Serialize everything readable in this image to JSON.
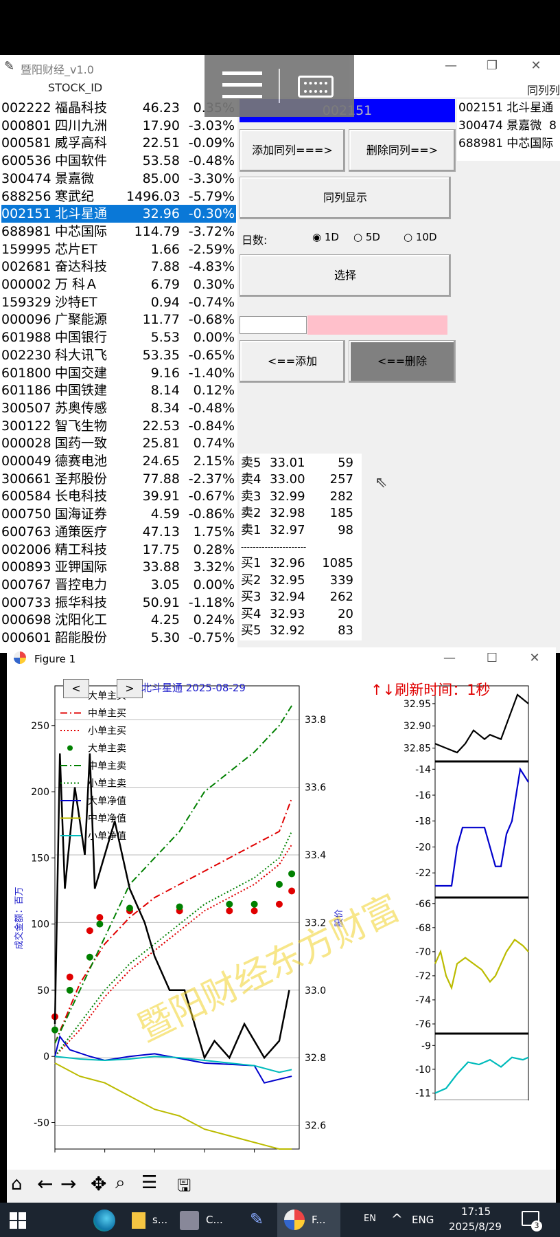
{
  "app": {
    "title": "暨阳财经_v1.0",
    "col_header_left": "STOCK_ID",
    "col_header_right": "同列列"
  },
  "stock_list": [
    {
      "code": "002222",
      "name": "福晶科技",
      "price": "46.23",
      "change": "0.35%"
    },
    {
      "code": "000801",
      "name": "四川九洲",
      "price": "17.90",
      "change": "-3.03%"
    },
    {
      "code": "000581",
      "name": "威孚高科",
      "price": "22.51",
      "change": "-0.09%"
    },
    {
      "code": "600536",
      "name": "中国软件",
      "price": "53.58",
      "change": "-0.48%"
    },
    {
      "code": "300474",
      "name": "景嘉微",
      "price": "85.00",
      "change": "-3.30%"
    },
    {
      "code": "688256",
      "name": "寒武纪",
      "price": "1496.03",
      "change": "-5.79%"
    },
    {
      "code": "002151",
      "name": "北斗星通",
      "price": "32.96",
      "change": "-0.30%",
      "selected": true
    },
    {
      "code": "688981",
      "name": "中芯国际",
      "price": "114.79",
      "change": "-3.72%"
    },
    {
      "code": "159995",
      "name": "芯片ET",
      "price": "1.66",
      "change": "-2.59%"
    },
    {
      "code": "002681",
      "name": "奋达科技",
      "price": "7.88",
      "change": "-4.83%"
    },
    {
      "code": "000002",
      "name": "万 科Ａ",
      "price": "6.79",
      "change": "0.30%"
    },
    {
      "code": "159329",
      "name": "沙特ET",
      "price": "0.94",
      "change": "-0.74%"
    },
    {
      "code": "000096",
      "name": "广聚能源",
      "price": "11.77",
      "change": "-0.68%"
    },
    {
      "code": "601988",
      "name": "中国银行",
      "price": "5.53",
      "change": "0.00%"
    },
    {
      "code": "002230",
      "name": "科大讯飞",
      "price": "53.35",
      "change": "-0.65%"
    },
    {
      "code": "601800",
      "name": "中国交建",
      "price": "9.16",
      "change": "-1.40%"
    },
    {
      "code": "601186",
      "name": "中国铁建",
      "price": "8.14",
      "change": "0.12%"
    },
    {
      "code": "300507",
      "name": "苏奥传感",
      "price": "8.34",
      "change": "-0.48%"
    },
    {
      "code": "300122",
      "name": "智飞生物",
      "price": "22.53",
      "change": "-0.84%"
    },
    {
      "code": "000028",
      "name": "国药一致",
      "price": "25.81",
      "change": "0.74%"
    },
    {
      "code": "000049",
      "name": "德赛电池",
      "price": "24.65",
      "change": "2.15%"
    },
    {
      "code": "300661",
      "name": "圣邦股份",
      "price": "77.88",
      "change": "-2.37%"
    },
    {
      "code": "600584",
      "name": "长电科技",
      "price": "39.91",
      "change": "-0.67%"
    },
    {
      "code": "000750",
      "name": "国海证券",
      "price": "4.59",
      "change": "-0.86%"
    },
    {
      "code": "600763",
      "name": "通策医疗",
      "price": "47.13",
      "change": "1.75%"
    },
    {
      "code": "002006",
      "name": "精工科技",
      "price": "17.75",
      "change": "0.28%"
    },
    {
      "code": "000893",
      "name": "亚钾国际",
      "price": "33.88",
      "change": "3.32%"
    },
    {
      "code": "000767",
      "name": "晋控电力",
      "price": "3.05",
      "change": "0.00%"
    },
    {
      "code": "000733",
      "name": "振华科技",
      "price": "50.91",
      "change": "-1.18%"
    },
    {
      "code": "000698",
      "name": "沈阳化工",
      "price": "4.25",
      "change": "0.24%"
    },
    {
      "code": "000601",
      "name": "韶能股份",
      "price": "5.30",
      "change": "-0.75%"
    }
  ],
  "controls": {
    "current_code": "002151",
    "add_same": "添加同列===>",
    "del_same": "删除同列==>",
    "show_same": "同列显示",
    "days_label": "日数:",
    "day_options": [
      "1D",
      "5D",
      "10D"
    ],
    "select": "选择",
    "add": "<==添加",
    "delete": "<==删除"
  },
  "same_list": [
    "002151 北斗星通",
    "300474 景嘉微  8",
    "688981 中芯国际"
  ],
  "depth": {
    "asks": [
      {
        "label": "卖5",
        "price": "33.01",
        "vol": "59"
      },
      {
        "label": "卖4",
        "price": "33.00",
        "vol": "257"
      },
      {
        "label": "卖3",
        "price": "32.99",
        "vol": "282"
      },
      {
        "label": "卖2",
        "price": "32.98",
        "vol": "185"
      },
      {
        "label": "卖1",
        "price": "32.97",
        "vol": "98"
      }
    ],
    "separator": "----------------------",
    "bids": [
      {
        "label": "买1",
        "price": "32.96",
        "vol": "1085"
      },
      {
        "label": "买2",
        "price": "32.95",
        "vol": "339"
      },
      {
        "label": "买3",
        "price": "32.94",
        "vol": "262"
      },
      {
        "label": "买4",
        "price": "32.93",
        "vol": "20"
      },
      {
        "label": "买5",
        "price": "32.92",
        "vol": "83"
      }
    ]
  },
  "figure": {
    "window_title": "Figure 1",
    "header": "北斗星通  2025-08-29",
    "refresh": "↑↓刷新时间：1秒",
    "watermark": "暨阳财经东方财富"
  },
  "chart_data": [
    {
      "type": "line",
      "xlim": [
        0,
        4900
      ],
      "ylim_left": [
        -70,
        280
      ],
      "ylim_right": [
        32.53,
        33.9
      ],
      "x_ticks": [
        0,
        1000,
        2000,
        3000,
        4000
      ],
      "y_ticks_left": [
        -50,
        0,
        50,
        100,
        150,
        200,
        250
      ],
      "y_ticks_right": [
        32.6,
        32.8,
        33.0,
        33.2,
        33.4,
        33.6,
        33.8
      ],
      "ylabel": "成交金额：百万",
      "ylabel_right": "股价",
      "grid": true,
      "legend": "top-left",
      "series": [
        {
          "name": "大单主买",
          "style": "dots",
          "color": "#e00000",
          "x": [
            0,
            300,
            700,
            900,
            1500,
            2500,
            3500,
            4000,
            4500,
            4750
          ],
          "y": [
            30,
            60,
            95,
            105,
            110,
            110,
            110,
            110,
            115,
            125
          ]
        },
        {
          "name": "中单主买",
          "style": "dashdot",
          "color": "#e00000",
          "x": [
            0,
            500,
            1000,
            1500,
            2000,
            2500,
            3000,
            3500,
            4000,
            4500,
            4750
          ],
          "y": [
            10,
            55,
            85,
            105,
            120,
            130,
            140,
            150,
            160,
            170,
            195
          ]
        },
        {
          "name": "小单主买",
          "style": "dotted",
          "color": "#e00000",
          "x": [
            0,
            500,
            1000,
            1500,
            2000,
            2500,
            3000,
            3500,
            4000,
            4500,
            4750
          ],
          "y": [
            0,
            20,
            45,
            65,
            80,
            95,
            110,
            120,
            130,
            145,
            160
          ]
        },
        {
          "name": "大单主卖",
          "style": "dots",
          "color": "#008000",
          "x": [
            0,
            300,
            700,
            900,
            1500,
            2500,
            3500,
            4000,
            4500,
            4750
          ],
          "y": [
            20,
            50,
            75,
            100,
            112,
            113,
            115,
            115,
            130,
            138
          ]
        },
        {
          "name": "中单主卖",
          "style": "dashdot",
          "color": "#008000",
          "x": [
            0,
            500,
            1000,
            1500,
            2000,
            2500,
            3000,
            3500,
            4000,
            4500,
            4750
          ],
          "y": [
            10,
            50,
            90,
            130,
            150,
            170,
            200,
            215,
            230,
            250,
            265
          ]
        },
        {
          "name": "小单主卖",
          "style": "dotted",
          "color": "#008000",
          "x": [
            0,
            500,
            1000,
            1500,
            2000,
            2500,
            3000,
            3500,
            4000,
            4500,
            4750
          ],
          "y": [
            0,
            25,
            50,
            70,
            85,
            100,
            115,
            125,
            135,
            150,
            170
          ]
        },
        {
          "name": "大单净值",
          "style": "solid",
          "color": "#0000cc",
          "x": [
            0,
            100,
            300,
            700,
            1000,
            1500,
            2000,
            3000,
            4000,
            4200,
            4750
          ],
          "y": [
            0,
            15,
            5,
            0,
            -3,
            0,
            2,
            -5,
            -7,
            -20,
            -15
          ]
        },
        {
          "name": "中单净值",
          "style": "solid",
          "color": "#bbbb00",
          "x": [
            0,
            500,
            1000,
            1500,
            2000,
            2500,
            3000,
            3500,
            4000,
            4500,
            4750
          ],
          "y": [
            -5,
            -15,
            -20,
            -30,
            -40,
            -45,
            -55,
            -60,
            -65,
            -70,
            -70
          ]
        },
        {
          "name": "小单净值",
          "style": "solid",
          "color": "#00bbbb",
          "x": [
            0,
            500,
            1000,
            1500,
            2000,
            2500,
            3000,
            3500,
            4000,
            4500,
            4750
          ],
          "y": [
            0,
            -2,
            -3,
            -2,
            0,
            -1,
            -3,
            -5,
            -7,
            -12,
            -10
          ]
        },
        {
          "name": "",
          "axis": "right",
          "style": "solid",
          "color": "#000000",
          "x": [
            0,
            100,
            200,
            400,
            600,
            700,
            800,
            1000,
            1200,
            1500,
            1800,
            2000,
            2300,
            2600,
            2800,
            3000,
            3200,
            3500,
            3800,
            4000,
            4200,
            4500,
            4700
          ],
          "y": [
            32.9,
            33.7,
            33.3,
            33.6,
            33.4,
            33.7,
            33.3,
            33.4,
            33.5,
            33.3,
            33.2,
            33.1,
            33.0,
            33.0,
            32.9,
            32.8,
            32.85,
            32.8,
            32.9,
            32.85,
            32.8,
            32.85,
            33.0
          ]
        }
      ]
    },
    {
      "type": "line",
      "xlim": [
        4420,
        4760
      ],
      "ylim": [
        32.82,
        32.99
      ],
      "y_ticks": [
        32.85,
        32.9,
        32.95
      ],
      "series": [
        {
          "name": "",
          "color": "#000000",
          "x": [
            4420,
            4460,
            4500,
            4530,
            4560,
            4600,
            4620,
            4660,
            4690,
            4720,
            4760
          ],
          "y": [
            32.86,
            32.85,
            32.84,
            32.86,
            32.89,
            32.87,
            32.88,
            32.87,
            32.92,
            32.97,
            32.95
          ]
        }
      ]
    },
    {
      "type": "line",
      "xlim": [
        4420,
        4760
      ],
      "ylim": [
        -23.9,
        -13.4
      ],
      "y_ticks": [
        -22,
        -20,
        -18,
        -16,
        -14
      ],
      "series": [
        {
          "name": "",
          "color": "#0000cc",
          "x": [
            4420,
            4480,
            4500,
            4520,
            4560,
            4600,
            4640,
            4660,
            4680,
            4700,
            4730,
            4760
          ],
          "y": [
            -23,
            -23,
            -20,
            -18.5,
            -18.5,
            -18.5,
            -21.5,
            -21.5,
            -19,
            -18,
            -14,
            -15
          ]
        }
      ]
    },
    {
      "type": "line",
      "xlim": [
        4420,
        4760
      ],
      "ylim": [
        -76.8,
        -65.5
      ],
      "y_ticks": [
        -76,
        -74,
        -72,
        -70,
        -68,
        -66
      ],
      "series": [
        {
          "name": "",
          "color": "#bbbb00",
          "x": [
            4420,
            4440,
            4460,
            4480,
            4500,
            4530,
            4560,
            4590,
            4620,
            4640,
            4680,
            4710,
            4740,
            4760
          ],
          "y": [
            -71,
            -70,
            -72,
            -73,
            -71,
            -70.5,
            -71,
            -71.5,
            -72.5,
            -72,
            -70,
            -69,
            -69.5,
            -70
          ]
        }
      ]
    },
    {
      "type": "line",
      "xlim": [
        4420,
        4760
      ],
      "ylim": [
        -11.3,
        -8.5
      ],
      "y_ticks": [
        -11,
        -10,
        -9
      ],
      "x_ticks": [
        4500,
        4600,
        4700
      ],
      "series": [
        {
          "name": "",
          "color": "#00bbbb",
          "x": [
            4420,
            4460,
            4500,
            4540,
            4580,
            4620,
            4660,
            4700,
            4740,
            4760
          ],
          "y": [
            -11,
            -10.8,
            -10.2,
            -9.7,
            -9.8,
            -9.6,
            -9.9,
            -9.5,
            -9.6,
            -9.5
          ]
        }
      ]
    }
  ],
  "taskbar": {
    "items": [
      "s...",
      "C...",
      "F..."
    ],
    "lang1": "EN",
    "lang2": "ENG",
    "time": "17:15",
    "date": "2025/8/29",
    "badge": "3"
  }
}
